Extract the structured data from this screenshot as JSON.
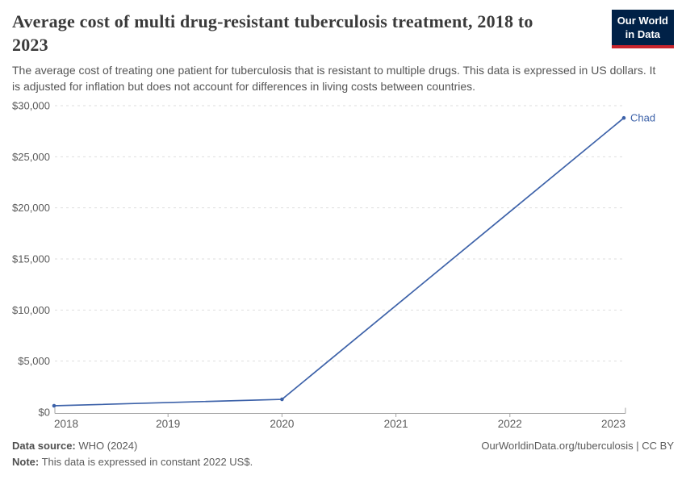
{
  "header": {
    "title": "Average cost of multi drug-resistant tuberculosis treatment, 2018 to 2023",
    "subtitle": "The average cost of treating one patient for tuberculosis that is resistant to multiple drugs. This data is expressed in US dollars. It is adjusted for inflation but does not account for differences in living costs between countries.",
    "logo": {
      "line1": "Our World",
      "line2": "in Data"
    }
  },
  "theme": {
    "navy": "#002147",
    "red": "#c8242c",
    "line_blue": "#3d62a9",
    "grid_gray": "#dedede",
    "axis_gray": "#a3a3a3",
    "text_gray": "#5b5b5b"
  },
  "chart_data": {
    "type": "line",
    "title": "Average cost of multi drug-resistant tuberculosis treatment, 2018 to 2023",
    "xlabel": "",
    "ylabel": "US dollars",
    "xlim": [
      2018,
      2023
    ],
    "ylim": [
      0,
      30000
    ],
    "grid": "horizontal dashed",
    "legend_position": "end-of-line label",
    "xticks": [
      2018,
      2019,
      2020,
      2021,
      2022,
      2023
    ],
    "yticks": [
      {
        "value": 0,
        "label": "$0"
      },
      {
        "value": 5000,
        "label": "$5,000"
      },
      {
        "value": 10000,
        "label": "$10,000"
      },
      {
        "value": 15000,
        "label": "$15,000"
      },
      {
        "value": 20000,
        "label": "$20,000"
      },
      {
        "value": 25000,
        "label": "$25,000"
      },
      {
        "value": 30000,
        "label": "$30,000"
      }
    ],
    "series": [
      {
        "name": "Chad",
        "color": "#3d62a9",
        "points": [
          [
            2018,
            630
          ],
          [
            2020,
            1260
          ],
          [
            2023,
            28800
          ]
        ]
      }
    ]
  },
  "footer": {
    "datasource_label": "Data source:",
    "datasource_value": " WHO (2024)",
    "right_text": "OurWorldinData.org/tuberculosis | CC BY",
    "note_label": "Note:",
    "note_value": " This data is expressed in constant 2022 US$."
  }
}
